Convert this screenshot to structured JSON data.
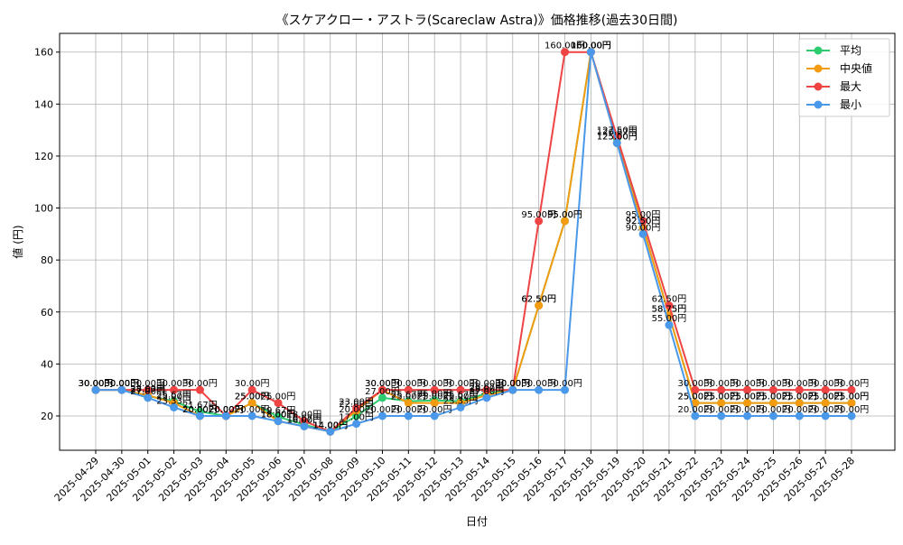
{
  "chart_data": {
    "type": "line",
    "title": "《スケアクロー・アストラ(Scareclaw Astra)》価格推移(過去30日間)",
    "xlabel": "日付",
    "ylabel": "値 (円)",
    "ylim": [
      6.8,
      167.2
    ],
    "yticks": [
      20,
      40,
      60,
      80,
      100,
      120,
      140,
      160
    ],
    "grid": true,
    "legend_position": "top-right",
    "label_suffix": "円",
    "categories": [
      "2025-04-29",
      "2025-04-30",
      "2025-05-01",
      "2025-05-02",
      "2025-05-03",
      "2025-05-04",
      "2025-05-05",
      "2025-05-06",
      "2025-05-07",
      "2025-05-08",
      "2025-05-09",
      "2025-05-10",
      "2025-05-11",
      "2025-05-12",
      "2025-05-13",
      "2025-05-14",
      "2025-05-15",
      "2025-05-16",
      "2025-05-17",
      "2025-05-18",
      "2025-05-19",
      "2025-05-20",
      "2025-05-21",
      "2025-05-22",
      "2025-05-23",
      "2025-05-24",
      "2025-05-25",
      "2025-05-26",
      "2025-05-27",
      "2025-05-28"
    ],
    "series": [
      {
        "name": "平均",
        "color": "#2ecc71",
        "values": [
          30,
          30,
          27.67,
          25.67,
          21.67,
          20,
          25,
          19.67,
          16.67,
          14,
          20,
          27,
          25.67,
          26,
          25.67,
          28.67,
          30,
          62.5,
          95,
          160,
          126.67,
          92.5,
          58.75,
          25,
          25,
          25,
          25,
          25,
          25,
          25
        ]
      },
      {
        "name": "中央値",
        "color": "#f39c12",
        "values": [
          30,
          30,
          28,
          25,
          20,
          20,
          25,
          18,
          16,
          14,
          22,
          30,
          25,
          25,
          25,
          28,
          30,
          62.5,
          95,
          160,
          125,
          92.5,
          58.75,
          25,
          25,
          25,
          25,
          25,
          25,
          25
        ]
      },
      {
        "name": "最大",
        "color": "#ef4444",
        "values": [
          30,
          30,
          30,
          30,
          30,
          20,
          30,
          25,
          18,
          14,
          23,
          30,
          30,
          30,
          30,
          30,
          30,
          95,
          160,
          160,
          127.5,
          95,
          62.5,
          30,
          30,
          30,
          30,
          30,
          30,
          30
        ]
      },
      {
        "name": "最小",
        "color": "#4a98e9",
        "values": [
          30,
          30,
          27,
          23.33,
          20,
          20,
          20,
          18,
          16,
          14,
          17,
          20,
          20,
          20,
          23.33,
          27,
          30,
          30,
          30,
          160,
          125,
          90,
          55,
          20,
          20,
          20,
          20,
          20,
          20,
          20
        ]
      }
    ]
  }
}
